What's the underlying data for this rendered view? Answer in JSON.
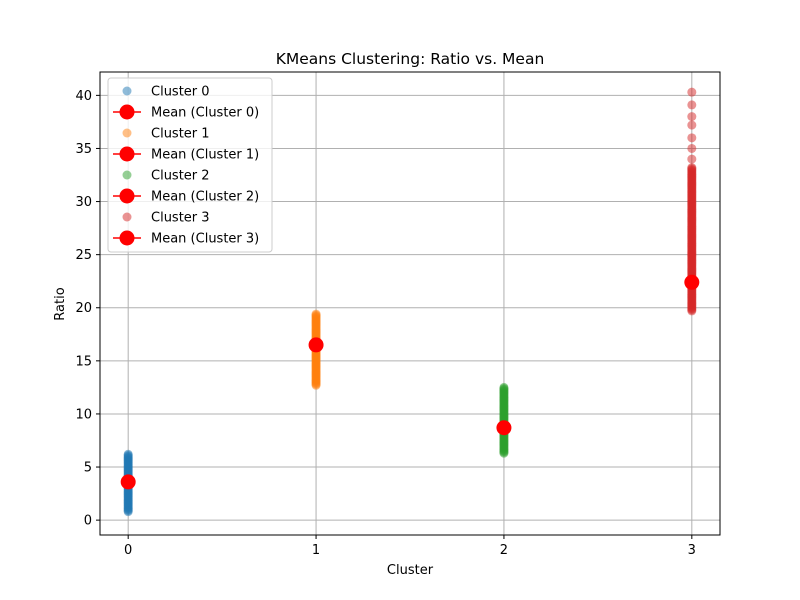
{
  "chart_data": {
    "type": "scatter",
    "title": "KMeans Clustering: Ratio vs. Mean",
    "xlabel": "Cluster",
    "ylabel": "Ratio",
    "xlim": [
      -0.15,
      3.15
    ],
    "ylim": [
      -1.4,
      42.2
    ],
    "x_ticks": [
      0,
      1,
      2,
      3
    ],
    "y_ticks": [
      0,
      5,
      10,
      15,
      20,
      25,
      30,
      35,
      40
    ],
    "grid": true,
    "legend_position": "top-left",
    "series": [
      {
        "name": "Cluster 0",
        "kind": "points",
        "color": "#1f77b4",
        "x": 0,
        "y_min": 0.8,
        "y_max": 6.2,
        "y_step": 0.1
      },
      {
        "name": "Mean (Cluster 0)",
        "kind": "mean",
        "color": "#ff0000",
        "x": 0,
        "y": 3.6
      },
      {
        "name": "Cluster 1",
        "kind": "points",
        "color": "#ff7f0e",
        "x": 1,
        "y_min": 12.7,
        "y_max": 19.4,
        "y_step": 0.1
      },
      {
        "name": "Mean (Cluster 1)",
        "kind": "mean",
        "color": "#ff0000",
        "x": 1,
        "y": 16.5
      },
      {
        "name": "Cluster 2",
        "kind": "points",
        "color": "#2ca02c",
        "x": 2,
        "y_min": 6.3,
        "y_max": 12.5,
        "y_step": 0.1
      },
      {
        "name": "Mean (Cluster 2)",
        "kind": "mean",
        "color": "#ff0000",
        "x": 2,
        "y": 8.7
      },
      {
        "name": "Cluster 3",
        "kind": "points",
        "color": "#d62728",
        "x": 3,
        "y_min": 19.7,
        "y_max": 33.2,
        "y_step": 0.1,
        "extra_y": [
          34.0,
          35.0,
          36.0,
          37.2,
          38.0,
          39.1,
          40.3
        ]
      },
      {
        "name": "Mean (Cluster 3)",
        "kind": "mean",
        "color": "#ff0000",
        "x": 3,
        "y": 22.4
      }
    ]
  }
}
